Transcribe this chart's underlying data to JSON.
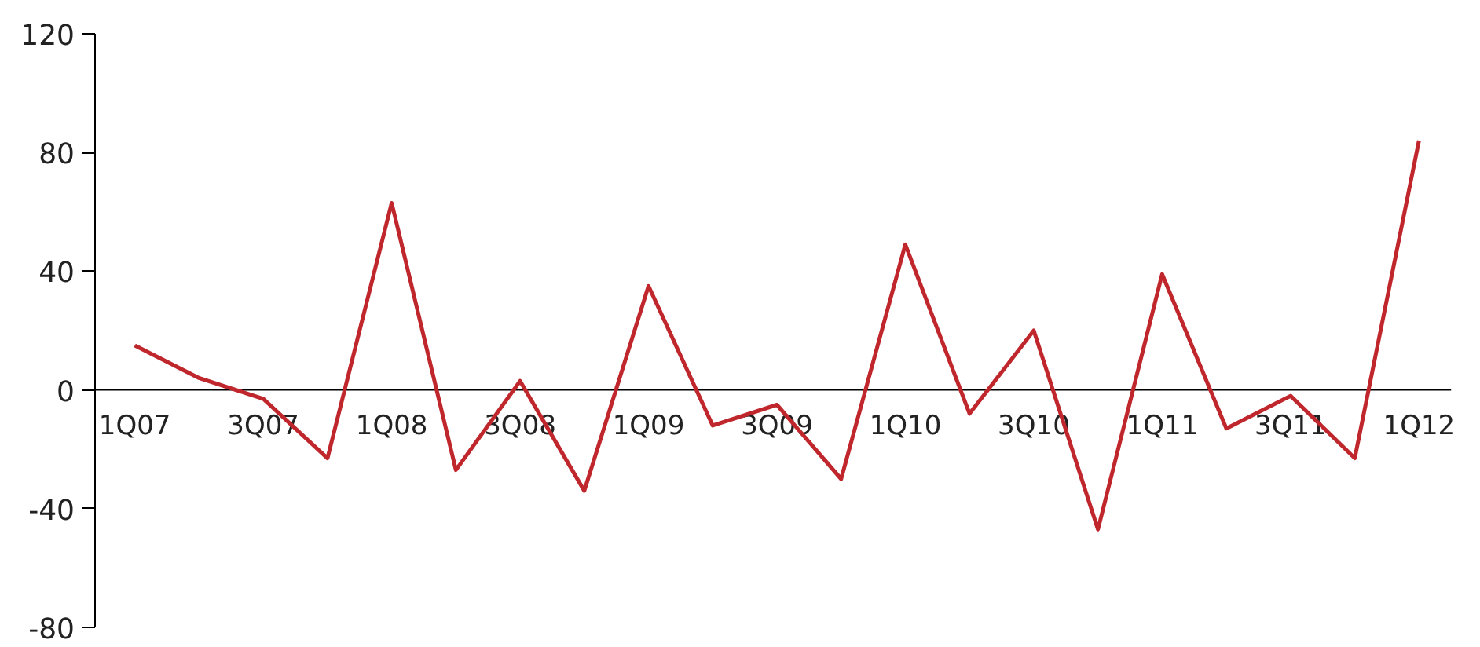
{
  "chart_data": {
    "type": "line",
    "categories": [
      "1Q07",
      null,
      "3Q07",
      null,
      "1Q08",
      null,
      "3Q08",
      null,
      "1Q09",
      null,
      "3Q09",
      null,
      "1Q10",
      null,
      "3Q10",
      null,
      "1Q11",
      null,
      "3Q11",
      null,
      "1Q12"
    ],
    "series": [
      {
        "color": "#c0272d",
        "values": [
          15,
          4,
          -3,
          -23,
          63,
          -27,
          3,
          -34,
          35,
          -12,
          -5,
          -30,
          49,
          -8,
          20,
          -47,
          39,
          -13,
          -2,
          -23,
          84
        ]
      }
    ],
    "ylim": [
      -80,
      120
    ],
    "yticks": [
      -80,
      -40,
      0,
      40,
      80,
      120
    ],
    "grid": false,
    "marker": "none",
    "line_style": "solid"
  }
}
